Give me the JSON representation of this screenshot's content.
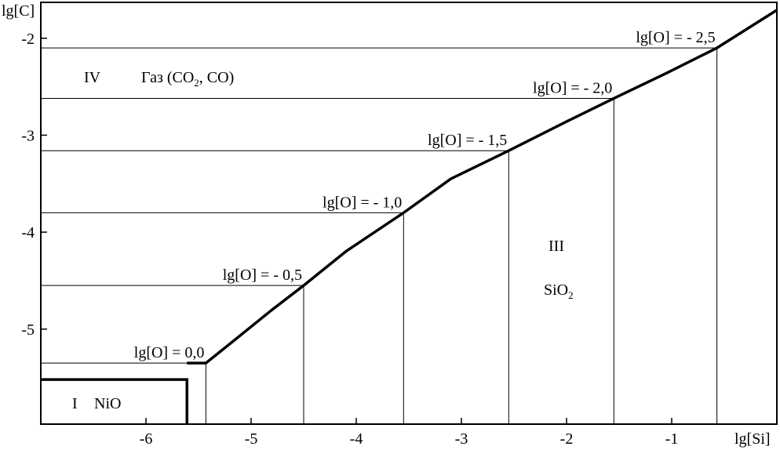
{
  "chart_data": {
    "type": "line",
    "xlabel": "lg[Si]",
    "ylabel": "lg[C]",
    "xlim": [
      -7.0,
      0.0
    ],
    "ylim": [
      -5.98,
      -1.63
    ],
    "xticks": [
      -6,
      -5,
      -4,
      -3,
      -2,
      -1
    ],
    "yticks": [
      -2,
      -3,
      -4,
      -5
    ],
    "xtick_labels": [
      "-6",
      "-5",
      "-4",
      "-3",
      "-2",
      "-1"
    ],
    "ytick_labels": [
      "-2",
      "-3",
      "-4",
      "-5"
    ],
    "grid": false,
    "boundary": {
      "x": [
        -5.61,
        -5.43,
        -5.2,
        -4.8,
        -4.5,
        -4.1,
        -3.55,
        -3.1,
        -2.55,
        -2.0,
        -1.55,
        -1.05,
        -0.57,
        0.0
      ],
      "y": [
        -5.35,
        -5.35,
        -5.15,
        -4.8,
        -4.55,
        -4.2,
        -3.8,
        -3.45,
        -3.16,
        -2.86,
        -2.62,
        -2.36,
        -2.1,
        -1.71
      ]
    },
    "nio_region": {
      "x": [
        -7.0,
        -5.61,
        -5.61
      ],
      "y": [
        -5.52,
        -5.52,
        -5.98
      ]
    },
    "isolines": [
      {
        "label": "lg[O] = 0,0",
        "x": -5.43,
        "y": -5.35
      },
      {
        "label": "lg[O] = - 0,5",
        "x": -4.5,
        "y": -4.55
      },
      {
        "label": "lg[O] = - 1,0",
        "x": -3.55,
        "y": -3.8
      },
      {
        "label": "lg[O] = - 1,5",
        "x": -2.55,
        "y": -3.16
      },
      {
        "label": "lg[O] = - 2,0",
        "x": -1.55,
        "y": -2.62
      },
      {
        "label": "lg[O] = - 2,5",
        "x": -0.57,
        "y": -2.1
      }
    ],
    "regions": {
      "I": {
        "numeral": "I",
        "name": "NiO"
      },
      "III": {
        "numeral": "III",
        "name_main": "SiO",
        "name_sub": "2"
      },
      "IV": {
        "numeral": "IV",
        "name_part1": "Газ (CO",
        "name_sub": "2",
        "name_part2": ", CO)"
      }
    }
  }
}
